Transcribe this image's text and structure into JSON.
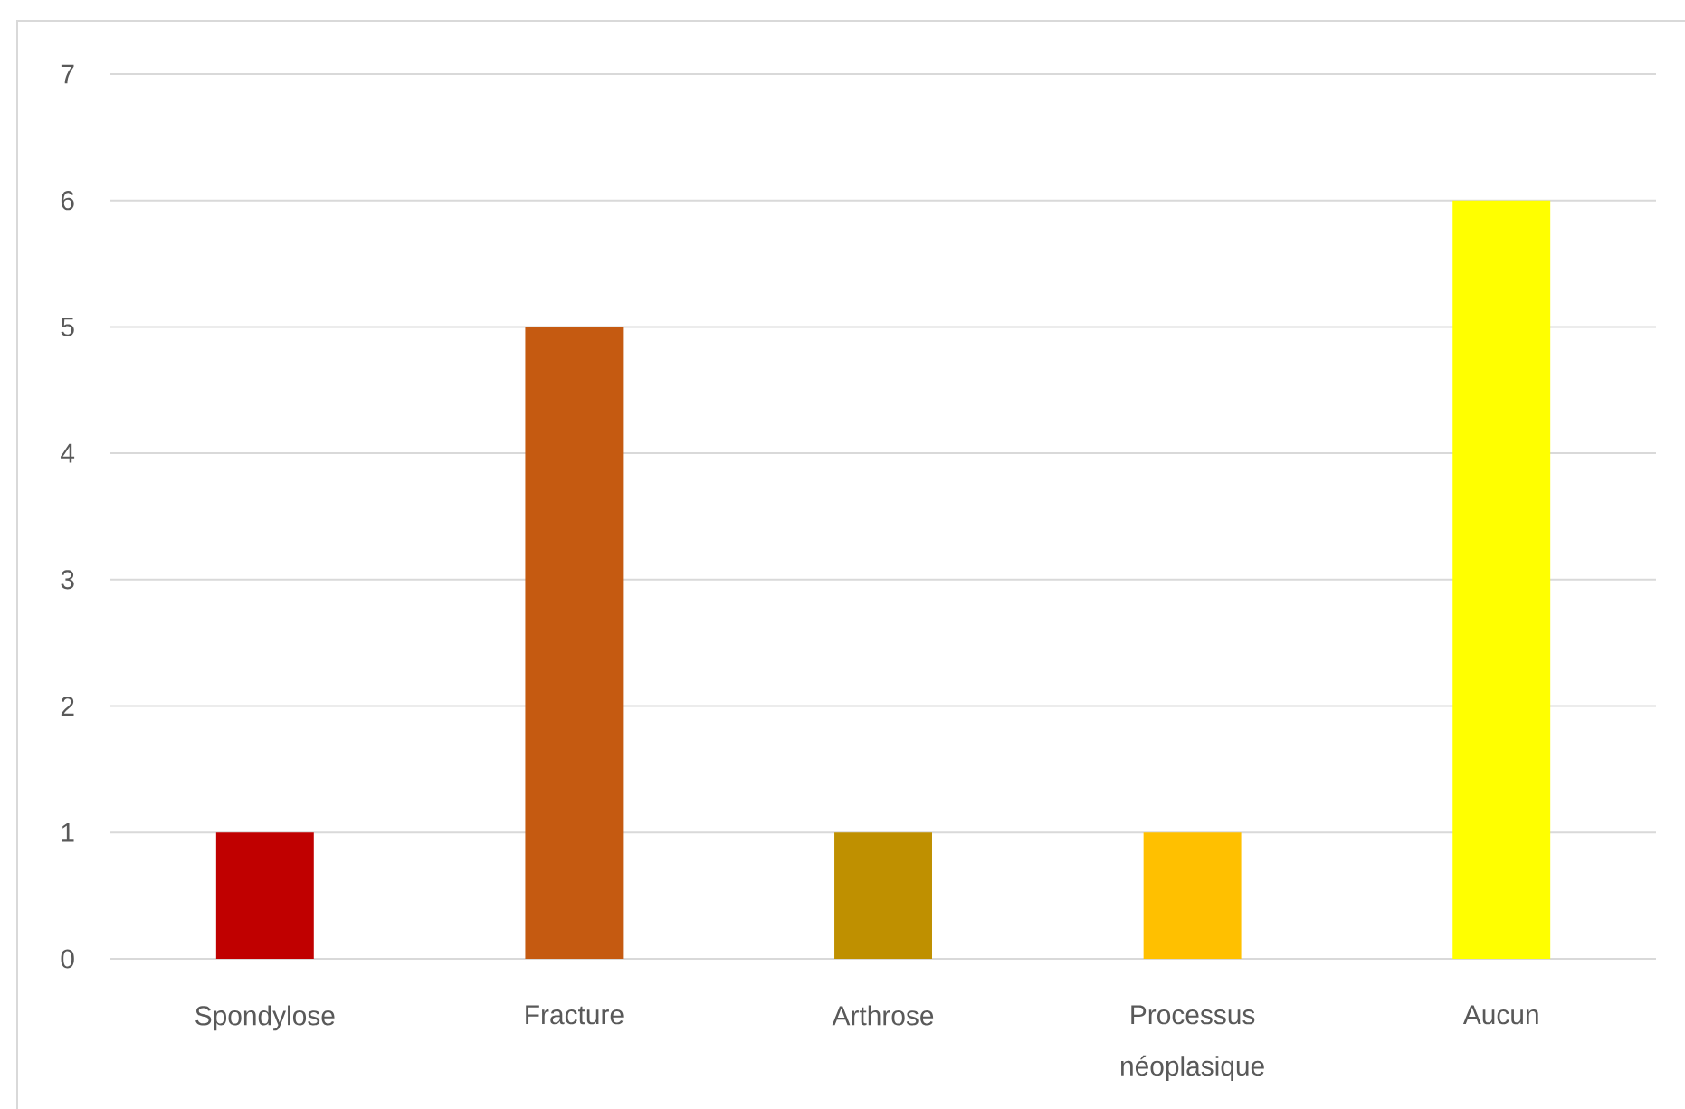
{
  "chart_data": {
    "type": "bar",
    "categories": [
      "Spondylose",
      "Fracture",
      "Arthrose",
      "Processus néoplasique",
      "Aucun"
    ],
    "values": [
      1,
      5,
      1,
      1,
      6
    ],
    "colors": [
      "#c00000",
      "#c55a11",
      "#bf9000",
      "#ffc000",
      "#ffff00"
    ],
    "ylim": [
      0,
      7
    ],
    "yticks": [
      0,
      1,
      2,
      3,
      4,
      5,
      6,
      7
    ],
    "grid": "y"
  }
}
